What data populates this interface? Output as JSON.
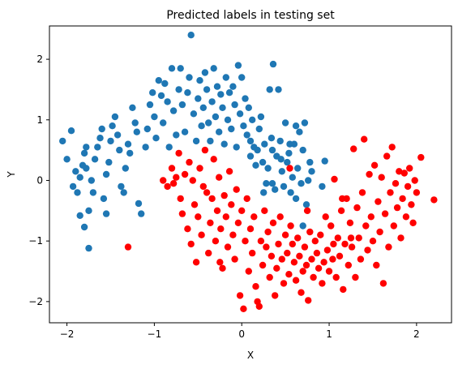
{
  "chart_data": {
    "type": "scatter",
    "title": "Predicted labels in testing set",
    "xlabel": "X",
    "ylabel": "Y",
    "xlim": [
      -2.2,
      2.4
    ],
    "ylim": [
      -2.35,
      2.55
    ],
    "xticks": [
      -2,
      -1,
      0,
      1,
      2
    ],
    "yticks": [
      -2,
      -1,
      0,
      1,
      2
    ],
    "grid": false,
    "legend": "none",
    "series": [
      {
        "color": "#1f77b4",
        "points": [
          [
            -2.05,
            0.65
          ],
          [
            -2.0,
            0.35
          ],
          [
            -1.95,
            0.82
          ],
          [
            -1.9,
            0.15
          ],
          [
            -1.93,
            -0.1
          ],
          [
            -1.88,
            -0.2
          ],
          [
            -1.85,
            0.05
          ],
          [
            -1.82,
            0.25
          ],
          [
            -1.8,
            0.45
          ],
          [
            -1.78,
            0.55
          ],
          [
            -1.85,
            -0.58
          ],
          [
            -1.75,
            -0.5
          ],
          [
            -1.8,
            -0.77
          ],
          [
            -1.75,
            -1.12
          ],
          [
            -1.78,
            0.2
          ],
          [
            -1.72,
            0.0
          ],
          [
            -1.7,
            -0.2
          ],
          [
            -1.68,
            0.35
          ],
          [
            -1.65,
            0.55
          ],
          [
            -1.62,
            0.7
          ],
          [
            -1.6,
            0.85
          ],
          [
            -1.58,
            -0.3
          ],
          [
            -1.55,
            -0.55
          ],
          [
            -1.55,
            0.1
          ],
          [
            -1.52,
            0.3
          ],
          [
            -1.5,
            0.65
          ],
          [
            -1.48,
            0.9
          ],
          [
            -1.45,
            1.05
          ],
          [
            -1.42,
            0.75
          ],
          [
            -1.4,
            0.5
          ],
          [
            -1.38,
            -0.1
          ],
          [
            -1.35,
            -0.2
          ],
          [
            -1.33,
            0.2
          ],
          [
            -1.3,
            0.6
          ],
          [
            -1.28,
            0.45
          ],
          [
            -1.25,
            1.2
          ],
          [
            -1.22,
            0.95
          ],
          [
            -1.2,
            0.8
          ],
          [
            -1.18,
            -0.38
          ],
          [
            -1.15,
            -0.55
          ],
          [
            -1.1,
            0.55
          ],
          [
            -1.08,
            0.85
          ],
          [
            -1.05,
            1.25
          ],
          [
            -1.02,
            1.45
          ],
          [
            -1.0,
            1.05
          ],
          [
            -0.98,
            0.7
          ],
          [
            -0.95,
            1.65
          ],
          [
            -0.92,
            1.4
          ],
          [
            -0.9,
            0.95
          ],
          [
            -0.88,
            1.6
          ],
          [
            -0.85,
            1.3
          ],
          [
            -0.83,
            0.55
          ],
          [
            -0.8,
            1.85
          ],
          [
            -0.78,
            1.15
          ],
          [
            -0.75,
            0.75
          ],
          [
            -0.72,
            1.5
          ],
          [
            -0.7,
            1.85
          ],
          [
            -0.68,
            1.25
          ],
          [
            -0.65,
            0.8
          ],
          [
            -0.62,
            1.45
          ],
          [
            -0.6,
            1.7
          ],
          [
            -0.58,
            2.4
          ],
          [
            -0.55,
            1.1
          ],
          [
            -0.52,
            0.65
          ],
          [
            -0.5,
            1.35
          ],
          [
            -0.48,
            1.65
          ],
          [
            -0.46,
            0.9
          ],
          [
            -0.44,
            1.2
          ],
          [
            -0.42,
            1.78
          ],
          [
            -0.4,
            1.5
          ],
          [
            -0.38,
            0.95
          ],
          [
            -0.36,
            0.65
          ],
          [
            -0.34,
            1.3
          ],
          [
            -0.32,
            1.85
          ],
          [
            -0.3,
            1.05
          ],
          [
            -0.28,
            1.55
          ],
          [
            -0.26,
            0.8
          ],
          [
            -0.24,
            1.42
          ],
          [
            -0.22,
            1.2
          ],
          [
            -0.2,
            0.6
          ],
          [
            -0.18,
            1.7
          ],
          [
            -0.16,
            1.0
          ],
          [
            -0.14,
            1.45
          ],
          [
            -0.12,
            0.85
          ],
          [
            -0.1,
            1.55
          ],
          [
            -0.08,
            1.25
          ],
          [
            -0.06,
            0.55
          ],
          [
            -0.04,
            1.9
          ],
          [
            -0.02,
            1.1
          ],
          [
            0.0,
            1.7
          ],
          [
            0.02,
            0.9
          ],
          [
            0.04,
            1.35
          ],
          [
            0.06,
            0.75
          ],
          [
            0.08,
            1.2
          ],
          [
            0.1,
            0.4
          ],
          [
            0.12,
            1.0
          ],
          [
            0.14,
            0.55
          ],
          [
            0.16,
            0.25
          ],
          [
            0.18,
            0.5
          ],
          [
            0.2,
            0.85
          ],
          [
            0.22,
            1.05
          ],
          [
            0.24,
            0.3
          ],
          [
            0.26,
            0.6
          ],
          [
            0.28,
            -0.05
          ],
          [
            0.3,
            0.2
          ],
          [
            0.32,
            1.5
          ],
          [
            0.34,
            0.7
          ],
          [
            0.36,
            1.92
          ],
          [
            0.38,
            -0.15
          ],
          [
            0.4,
            0.4
          ],
          [
            0.42,
            1.5
          ],
          [
            0.44,
            0.65
          ],
          [
            0.46,
            0.15
          ],
          [
            0.48,
            -0.1
          ],
          [
            0.5,
            0.95
          ],
          [
            0.52,
            0.3
          ],
          [
            0.54,
            0.45
          ],
          [
            0.56,
            -0.2
          ],
          [
            0.58,
            0.05
          ],
          [
            0.6,
            0.6
          ],
          [
            0.62,
            -0.3
          ],
          [
            0.64,
            0.2
          ],
          [
            0.66,
            0.8
          ],
          [
            0.68,
            -0.05
          ],
          [
            0.7,
            0.5
          ],
          [
            0.72,
            0.95
          ],
          [
            0.74,
            -0.4
          ],
          [
            0.76,
            0.0
          ],
          [
            0.78,
            0.3
          ],
          [
            0.8,
            0.15
          ],
          [
            0.62,
            0.9
          ],
          [
            0.55,
            0.6
          ],
          [
            0.45,
            0.35
          ],
          [
            0.35,
            -0.05
          ],
          [
            0.25,
            -0.2
          ],
          [
            0.7,
            -0.75
          ],
          [
            0.35,
            0.5
          ],
          [
            0.1,
            0.65
          ],
          [
            0.95,
            0.32
          ],
          [
            0.92,
            -0.1
          ]
        ]
      },
      {
        "color": "#ff0000",
        "points": [
          [
            -1.3,
            -1.1
          ],
          [
            -0.9,
            0.0
          ],
          [
            -0.85,
            -0.1
          ],
          [
            -0.8,
            0.2
          ],
          [
            -0.78,
            -0.05
          ],
          [
            -0.75,
            0.05
          ],
          [
            -0.72,
            0.45
          ],
          [
            -0.7,
            -0.3
          ],
          [
            -0.68,
            -0.55
          ],
          [
            -0.65,
            0.1
          ],
          [
            -0.62,
            -0.8
          ],
          [
            -0.6,
            0.3
          ],
          [
            -0.58,
            -1.05
          ],
          [
            -0.56,
            0.0
          ],
          [
            -0.54,
            -0.4
          ],
          [
            -0.52,
            -1.35
          ],
          [
            -0.5,
            -0.6
          ],
          [
            -0.48,
            0.2
          ],
          [
            -0.46,
            -0.9
          ],
          [
            -0.44,
            -0.1
          ],
          [
            -0.42,
            0.5
          ],
          [
            -0.4,
            -0.2
          ],
          [
            -0.38,
            -1.2
          ],
          [
            -0.36,
            -0.7
          ],
          [
            -0.34,
            -0.3
          ],
          [
            -0.32,
            0.35
          ],
          [
            -0.3,
            -1.0
          ],
          [
            -0.28,
            -0.5
          ],
          [
            -0.26,
            0.05
          ],
          [
            -0.24,
            -0.8
          ],
          [
            -0.22,
            -1.45
          ],
          [
            -0.2,
            -0.25
          ],
          [
            -0.18,
            -0.6
          ],
          [
            -0.16,
            -1.1
          ],
          [
            -0.14,
            0.15
          ],
          [
            -0.12,
            -0.4
          ],
          [
            -0.1,
            -0.9
          ],
          [
            -0.08,
            -1.3
          ],
          [
            -0.06,
            -0.15
          ],
          [
            -0.04,
            -0.7
          ],
          [
            -0.02,
            -1.9
          ],
          [
            0.0,
            -0.5
          ],
          [
            0.02,
            -2.12
          ],
          [
            0.04,
            -1.0
          ],
          [
            0.06,
            -0.3
          ],
          [
            0.08,
            -1.5
          ],
          [
            0.1,
            -0.8
          ],
          [
            0.12,
            -1.2
          ],
          [
            0.14,
            -0.6
          ],
          [
            0.16,
            -1.75
          ],
          [
            0.18,
            -2.0
          ],
          [
            0.2,
            -2.08
          ],
          [
            0.22,
            -1.0
          ],
          [
            0.24,
            -1.4
          ],
          [
            0.26,
            -0.5
          ],
          [
            0.28,
            -1.1
          ],
          [
            0.3,
            -0.85
          ],
          [
            0.32,
            -1.6
          ],
          [
            0.34,
            -1.25
          ],
          [
            0.36,
            -0.7
          ],
          [
            0.38,
            -1.9
          ],
          [
            0.4,
            -1.45
          ],
          [
            0.42,
            -1.05
          ],
          [
            0.44,
            -0.6
          ],
          [
            0.46,
            -1.3
          ],
          [
            0.48,
            -1.7
          ],
          [
            0.5,
            -0.9
          ],
          [
            0.52,
            -1.2
          ],
          [
            0.54,
            -1.55
          ],
          [
            0.56,
            -0.75
          ],
          [
            0.58,
            -1.05
          ],
          [
            0.6,
            -1.35
          ],
          [
            0.62,
            -1.65
          ],
          [
            0.64,
            -0.95
          ],
          [
            0.66,
            -1.25
          ],
          [
            0.68,
            -1.85
          ],
          [
            0.7,
            -1.5
          ],
          [
            0.72,
            -1.1
          ],
          [
            0.74,
            -1.4
          ],
          [
            0.76,
            -1.98
          ],
          [
            0.78,
            -0.85
          ],
          [
            0.8,
            -1.3
          ],
          [
            0.82,
            -1.6
          ],
          [
            0.84,
            -1.0
          ],
          [
            0.86,
            -1.2
          ],
          [
            0.88,
            -1.45
          ],
          [
            0.9,
            -0.9
          ],
          [
            0.92,
            -1.7
          ],
          [
            0.94,
            -1.35
          ],
          [
            0.96,
            -0.6
          ],
          [
            0.98,
            -1.15
          ],
          [
            1.0,
            -1.5
          ],
          [
            1.02,
            -0.75
          ],
          [
            1.04,
            -1.3
          ],
          [
            1.06,
            0.02
          ],
          [
            1.08,
            -1.6
          ],
          [
            1.1,
            -0.95
          ],
          [
            1.12,
            -1.25
          ],
          [
            1.14,
            -0.5
          ],
          [
            1.16,
            -1.8
          ],
          [
            1.18,
            -1.05
          ],
          [
            1.2,
            -0.3
          ],
          [
            1.22,
            -1.4
          ],
          [
            1.24,
            -0.7
          ],
          [
            1.26,
            -1.1
          ],
          [
            1.28,
            0.52
          ],
          [
            1.3,
            -1.6
          ],
          [
            1.32,
            -0.45
          ],
          [
            1.34,
            -0.95
          ],
          [
            1.36,
            -1.3
          ],
          [
            1.38,
            -0.2
          ],
          [
            1.4,
            0.68
          ],
          [
            1.42,
            -0.75
          ],
          [
            1.44,
            -1.15
          ],
          [
            1.46,
            0.1
          ],
          [
            1.48,
            -0.6
          ],
          [
            1.5,
            -1.0
          ],
          [
            1.52,
            0.25
          ],
          [
            1.54,
            -1.4
          ],
          [
            1.56,
            -0.35
          ],
          [
            1.58,
            -0.85
          ],
          [
            1.6,
            0.05
          ],
          [
            1.62,
            -1.7
          ],
          [
            1.64,
            -0.55
          ],
          [
            1.66,
            0.4
          ],
          [
            1.68,
            -1.1
          ],
          [
            1.7,
            -0.2
          ],
          [
            1.72,
            0.55
          ],
          [
            1.74,
            -0.75
          ],
          [
            1.76,
            -0.05
          ],
          [
            1.78,
            -0.45
          ],
          [
            1.8,
            0.15
          ],
          [
            1.82,
            -0.95
          ],
          [
            1.84,
            -0.3
          ],
          [
            1.86,
            0.12
          ],
          [
            1.88,
            -0.6
          ],
          [
            1.9,
            -0.1
          ],
          [
            1.92,
            0.2
          ],
          [
            1.94,
            -0.4
          ],
          [
            1.96,
            -0.7
          ],
          [
            1.98,
            0.0
          ],
          [
            2.0,
            -0.2
          ],
          [
            2.05,
            0.38
          ],
          [
            2.2,
            -0.32
          ],
          [
            1.25,
            -0.95
          ],
          [
            1.15,
            -0.3
          ],
          [
            0.55,
            0.2
          ],
          [
            0.75,
            -0.5
          ],
          [
            1.05,
            -1.05
          ],
          [
            -0.25,
            -1.35
          ]
        ]
      }
    ]
  }
}
